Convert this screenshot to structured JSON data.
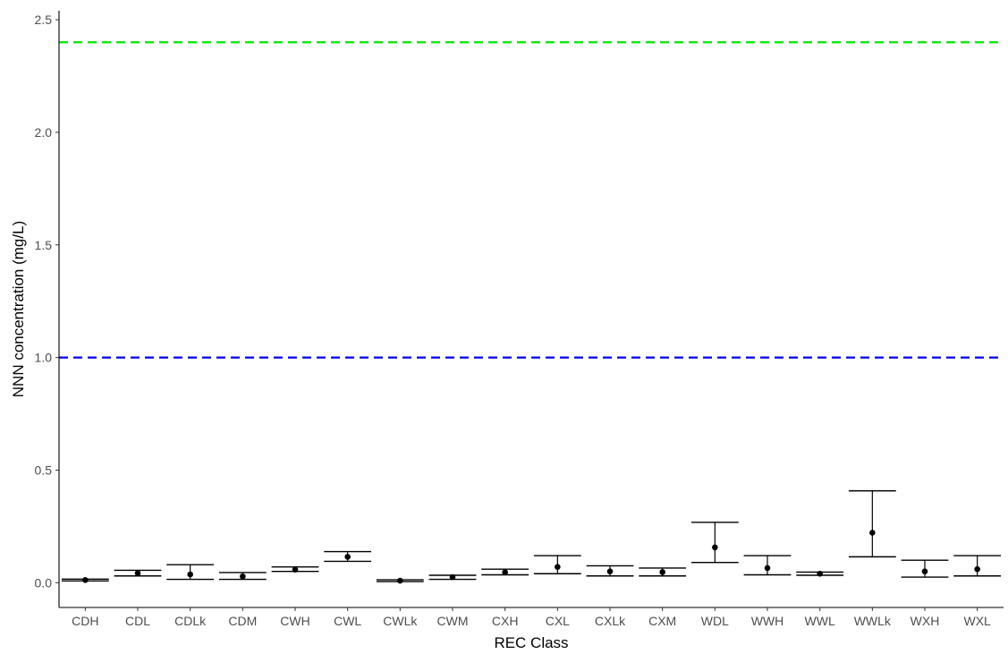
{
  "chart_data": {
    "type": "errorbar",
    "xlabel": "REC Class",
    "ylabel": "NNN concentration (mg/L)",
    "ylim": [
      -0.11,
      2.54
    ],
    "yticks": [
      "0.0",
      "0.5",
      "1.0",
      "1.5",
      "2.0",
      "2.5"
    ],
    "categories": [
      "CDH",
      "CDL",
      "CDLk",
      "CDM",
      "CWH",
      "CWL",
      "CWLk",
      "CWM",
      "CXH",
      "CXL",
      "CXLk",
      "CXM",
      "WDL",
      "WWH",
      "WWL",
      "WWLk",
      "WXH",
      "WXL"
    ],
    "means": [
      0.012,
      0.042,
      0.037,
      0.028,
      0.058,
      0.115,
      0.009,
      0.025,
      0.046,
      0.07,
      0.05,
      0.047,
      0.157,
      0.065,
      0.04,
      0.222,
      0.05,
      0.06
    ],
    "lower": [
      0.008,
      0.03,
      0.015,
      0.015,
      0.05,
      0.095,
      0.005,
      0.015,
      0.035,
      0.04,
      0.03,
      0.03,
      0.09,
      0.035,
      0.033,
      0.115,
      0.025,
      0.03
    ],
    "upper": [
      0.016,
      0.055,
      0.08,
      0.045,
      0.07,
      0.138,
      0.013,
      0.033,
      0.06,
      0.12,
      0.075,
      0.065,
      0.268,
      0.12,
      0.047,
      0.408,
      0.1,
      0.12
    ],
    "reference_lines": [
      {
        "value": 2.4,
        "color": "#00e600",
        "style": "dashed"
      },
      {
        "value": 1.0,
        "color": "#0000e6",
        "style": "dashed"
      }
    ],
    "grid": false,
    "legend": "none"
  }
}
